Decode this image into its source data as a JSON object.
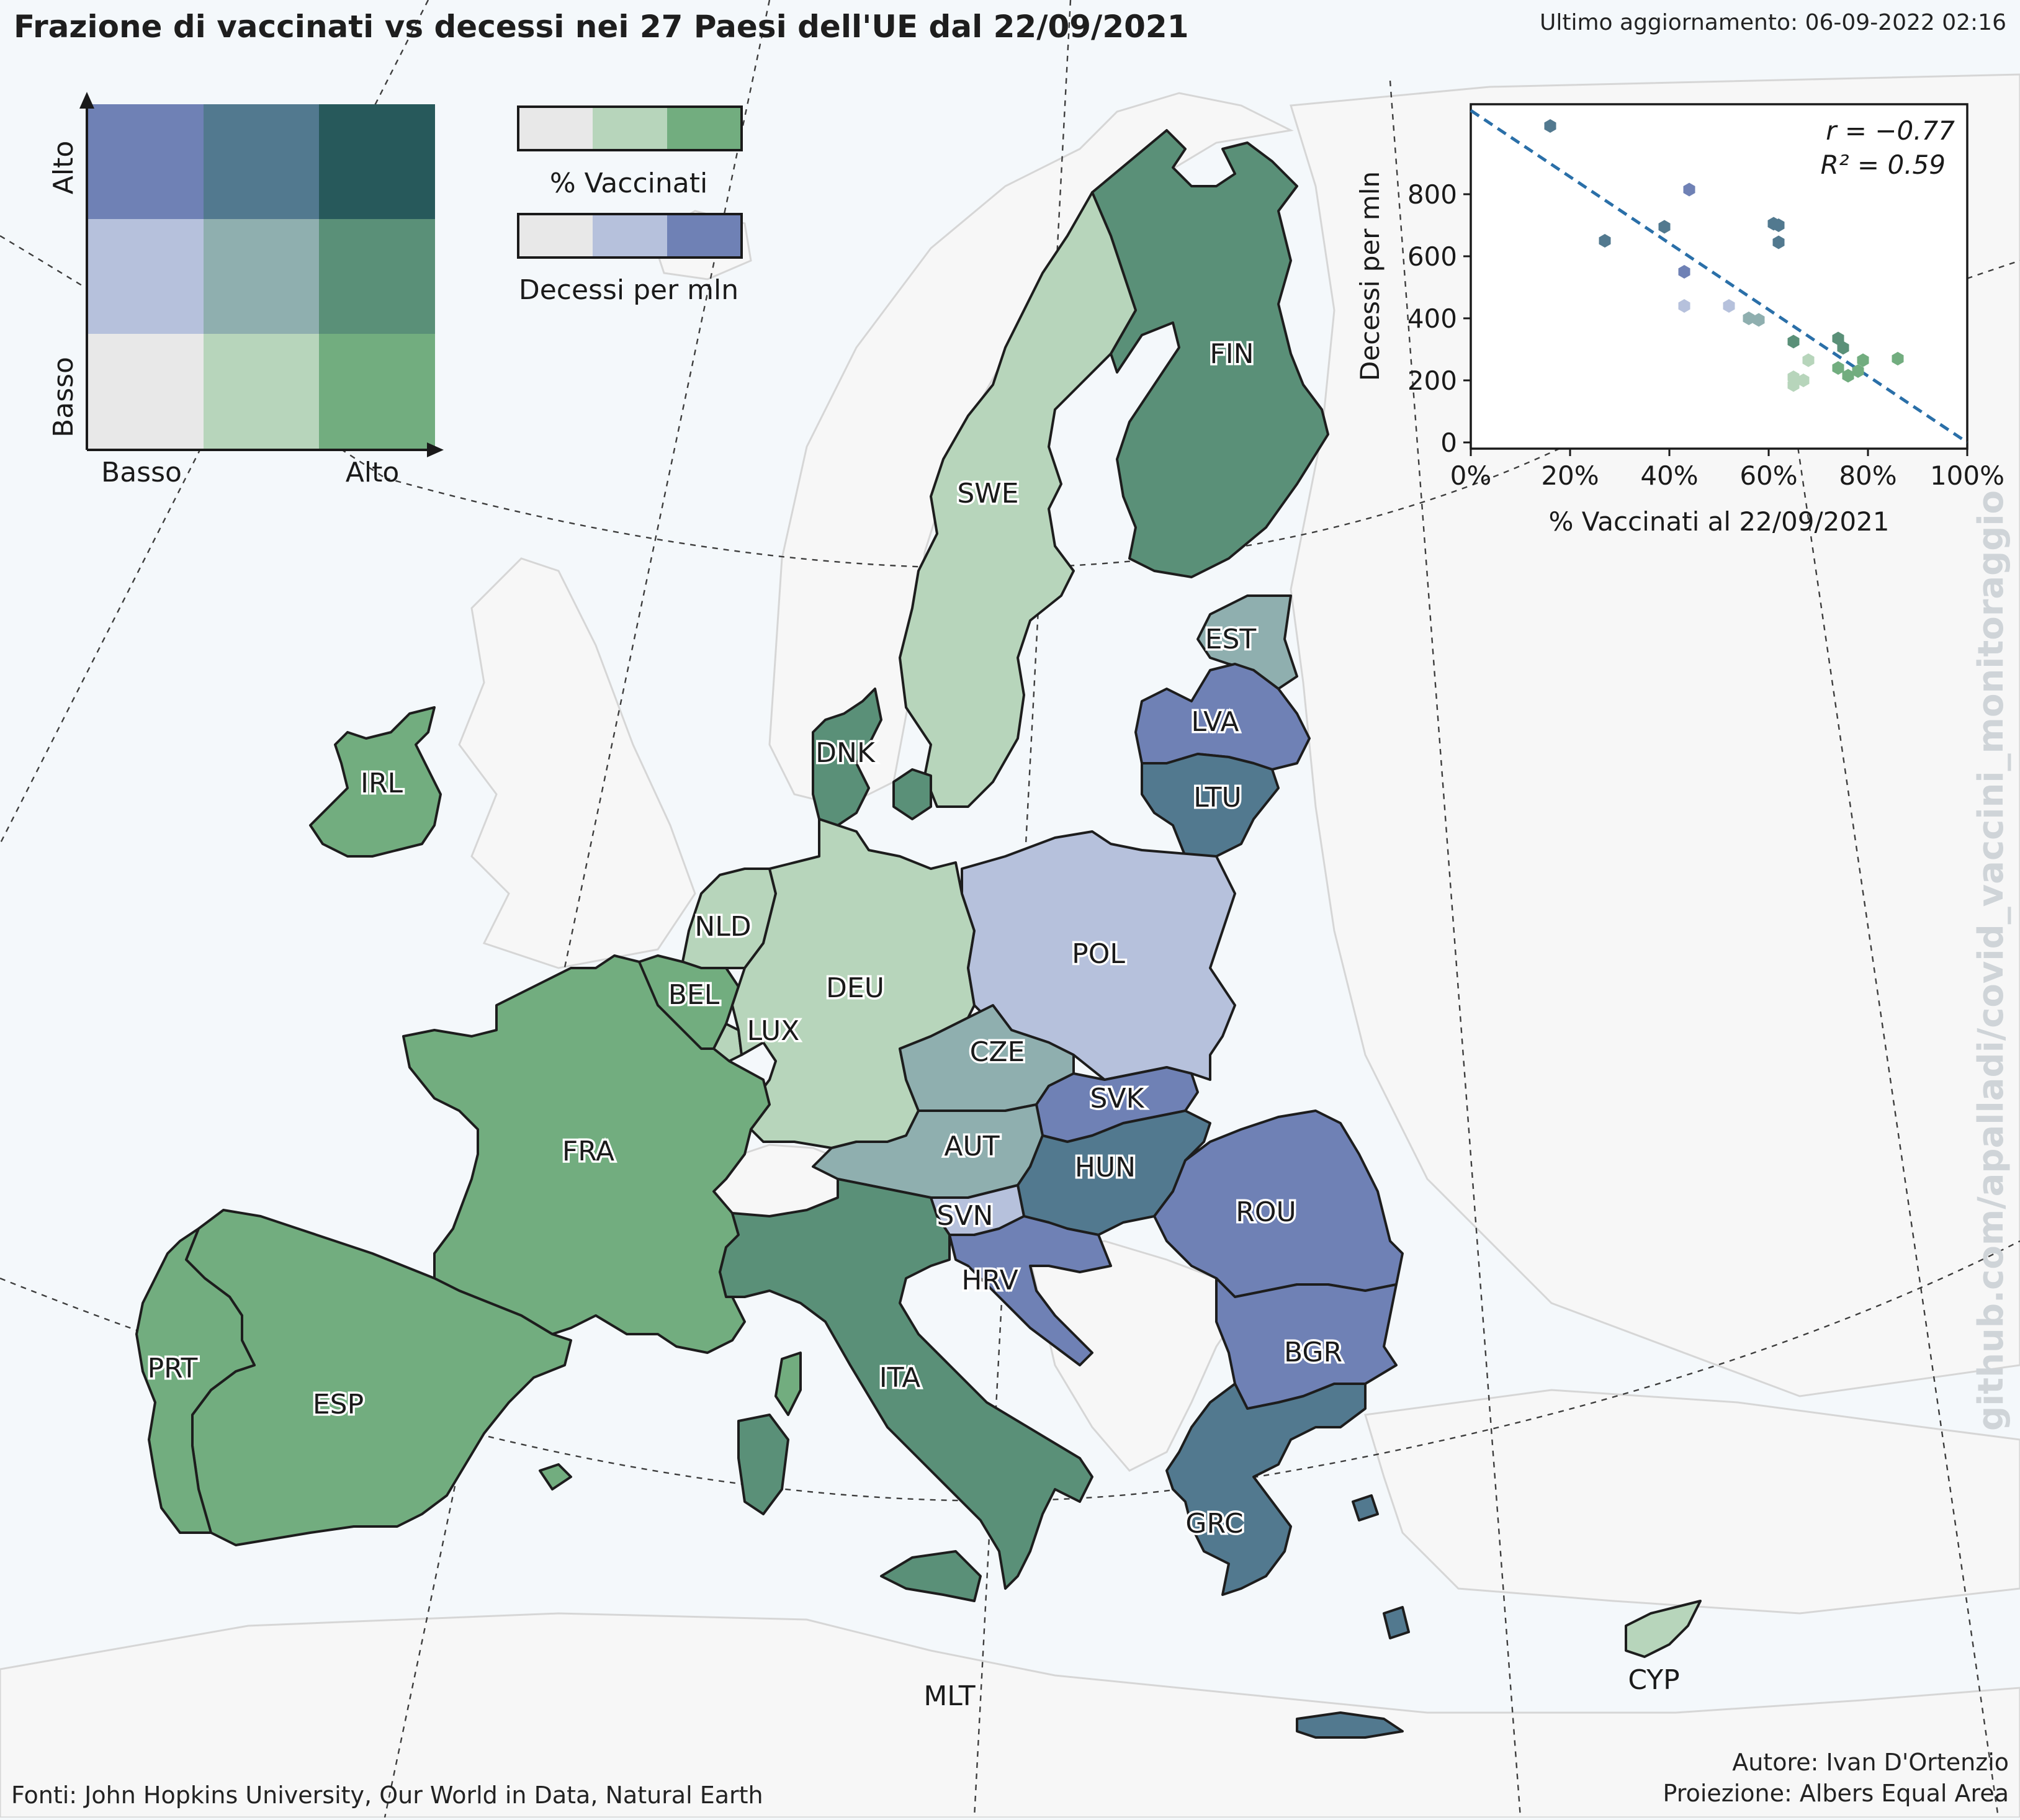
{
  "title": "Frazione di vaccinati vs decessi nei 27 Paesi dell'UE dal 22/09/2021",
  "last_update": "Ultimo aggiornamento: 06-09-2022 02:16",
  "footer": {
    "sources": "Fonti: John Hopkins University, Our World in Data, Natural Earth",
    "author": "Autore: Ivan D'Ortenzio",
    "projection": "Proiezione: Albers Equal Area"
  },
  "watermark": "github.com/apalladi/covid_vaccini_monitoraggio",
  "bivariate_legend": {
    "y_high": "Alto",
    "y_low": "Basso",
    "x_low": "Basso",
    "x_high": "Alto",
    "grid_colors": [
      [
        "#6f81b5",
        "#52798f",
        "#27595b"
      ],
      [
        "#b6c1dc",
        "#8fafaf",
        "#5a9078"
      ],
      [
        "#e8e8e8",
        "#b7d5bb",
        "#72ad7f"
      ]
    ]
  },
  "scale_legend": {
    "vaccinated_label": "% Vaccinati",
    "vaccinated_colors": [
      "#e8e8e8",
      "#b7d5bb",
      "#72ad7f"
    ],
    "deaths_label": "Decessi per mln",
    "deaths_colors": [
      "#e8e8e8",
      "#b6c1dc",
      "#6f81b5"
    ]
  },
  "countries": [
    {
      "code": "FIN",
      "color": "#5a9078"
    },
    {
      "code": "SWE",
      "color": "#b7d5bb"
    },
    {
      "code": "EST",
      "color": "#8fafaf"
    },
    {
      "code": "LVA",
      "color": "#6f81b5"
    },
    {
      "code": "LTU",
      "color": "#52798f"
    },
    {
      "code": "DNK",
      "color": "#5a9078"
    },
    {
      "code": "IRL",
      "color": "#72ad7f"
    },
    {
      "code": "NLD",
      "color": "#b7d5bb"
    },
    {
      "code": "BEL",
      "color": "#72ad7f"
    },
    {
      "code": "LUX",
      "color": "#b7d5bb"
    },
    {
      "code": "DEU",
      "color": "#b7d5bb"
    },
    {
      "code": "POL",
      "color": "#b6c1dc"
    },
    {
      "code": "CZE",
      "color": "#8fafaf"
    },
    {
      "code": "SVK",
      "color": "#6f81b5"
    },
    {
      "code": "AUT",
      "color": "#8fafaf"
    },
    {
      "code": "HUN",
      "color": "#52798f"
    },
    {
      "code": "ROU",
      "color": "#6f81b5"
    },
    {
      "code": "SVN",
      "color": "#b6c1dc"
    },
    {
      "code": "HRV",
      "color": "#6f81b5"
    },
    {
      "code": "BGR",
      "color": "#6f81b5"
    },
    {
      "code": "FRA",
      "color": "#72ad7f"
    },
    {
      "code": "ITA",
      "color": "#5a9078"
    },
    {
      "code": "ESP",
      "color": "#72ad7f"
    },
    {
      "code": "PRT",
      "color": "#72ad7f"
    },
    {
      "code": "GRC",
      "color": "#52798f"
    },
    {
      "code": "MLT",
      "color": "#5a9078"
    },
    {
      "code": "CYP",
      "color": "#b7d5bb"
    }
  ],
  "chart_data": {
    "type": "scatter",
    "xlabel": "% Vaccinati al 22/09/2021",
    "ylabel": "Decessi per mln",
    "xlim": [
      0,
      100
    ],
    "ylim": [
      -20,
      1090
    ],
    "x_ticks": [
      "0%",
      "20%",
      "40%",
      "60%",
      "80%",
      "100%"
    ],
    "y_ticks": [
      "0",
      "200",
      "400",
      "600",
      "800"
    ],
    "r_label": "r =  −0.77",
    "r2_label": "R² = 0.59",
    "fit_line": {
      "intercept": 1070,
      "slope": -10.7
    },
    "points": [
      {
        "x": 16,
        "y": 1020,
        "color": "#52798f"
      },
      {
        "x": 27,
        "y": 650,
        "color": "#52798f"
      },
      {
        "x": 39,
        "y": 695,
        "color": "#52798f"
      },
      {
        "x": 44,
        "y": 815,
        "color": "#6f81b5"
      },
      {
        "x": 43,
        "y": 550,
        "color": "#6f81b5"
      },
      {
        "x": 43,
        "y": 440,
        "color": "#b6c1dc"
      },
      {
        "x": 52,
        "y": 440,
        "color": "#b6c1dc"
      },
      {
        "x": 56,
        "y": 400,
        "color": "#8fafaf"
      },
      {
        "x": 58,
        "y": 395,
        "color": "#8fafaf"
      },
      {
        "x": 61,
        "y": 705,
        "color": "#52798f"
      },
      {
        "x": 62,
        "y": 700,
        "color": "#52798f"
      },
      {
        "x": 62,
        "y": 645,
        "color": "#52798f"
      },
      {
        "x": 65,
        "y": 325,
        "color": "#5a9078"
      },
      {
        "x": 65,
        "y": 210,
        "color": "#b7d5bb"
      },
      {
        "x": 65,
        "y": 185,
        "color": "#b7d5bb"
      },
      {
        "x": 67,
        "y": 200,
        "color": "#b7d5bb"
      },
      {
        "x": 68,
        "y": 265,
        "color": "#b7d5bb"
      },
      {
        "x": 74,
        "y": 335,
        "color": "#5a9078"
      },
      {
        "x": 75,
        "y": 305,
        "color": "#5a9078"
      },
      {
        "x": 74,
        "y": 240,
        "color": "#72ad7f"
      },
      {
        "x": 76,
        "y": 215,
        "color": "#72ad7f"
      },
      {
        "x": 78,
        "y": 230,
        "color": "#72ad7f"
      },
      {
        "x": 79,
        "y": 265,
        "color": "#72ad7f"
      },
      {
        "x": 86,
        "y": 270,
        "color": "#72ad7f"
      }
    ]
  }
}
